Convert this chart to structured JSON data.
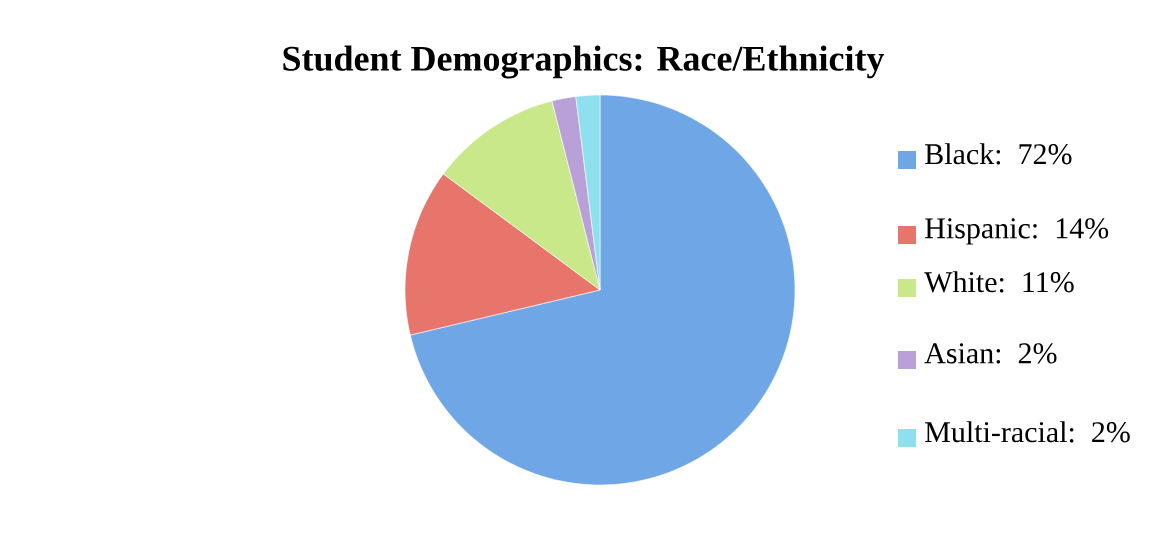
{
  "chart_data": {
    "type": "pie",
    "title": "Student Demographics: Race/Ethnicity",
    "categories": [
      "Black: 72%",
      "Hispanic: 14%",
      "White: 11%",
      "Asian: 2%",
      "Multi-racial: 2%"
    ],
    "values": [
      72,
      14,
      11,
      2,
      2
    ],
    "colors": [
      "#6fa6e6",
      "#e8756c",
      "#c8e88a",
      "#b9a0d8",
      "#8ee0ee"
    ],
    "legend": "right"
  }
}
